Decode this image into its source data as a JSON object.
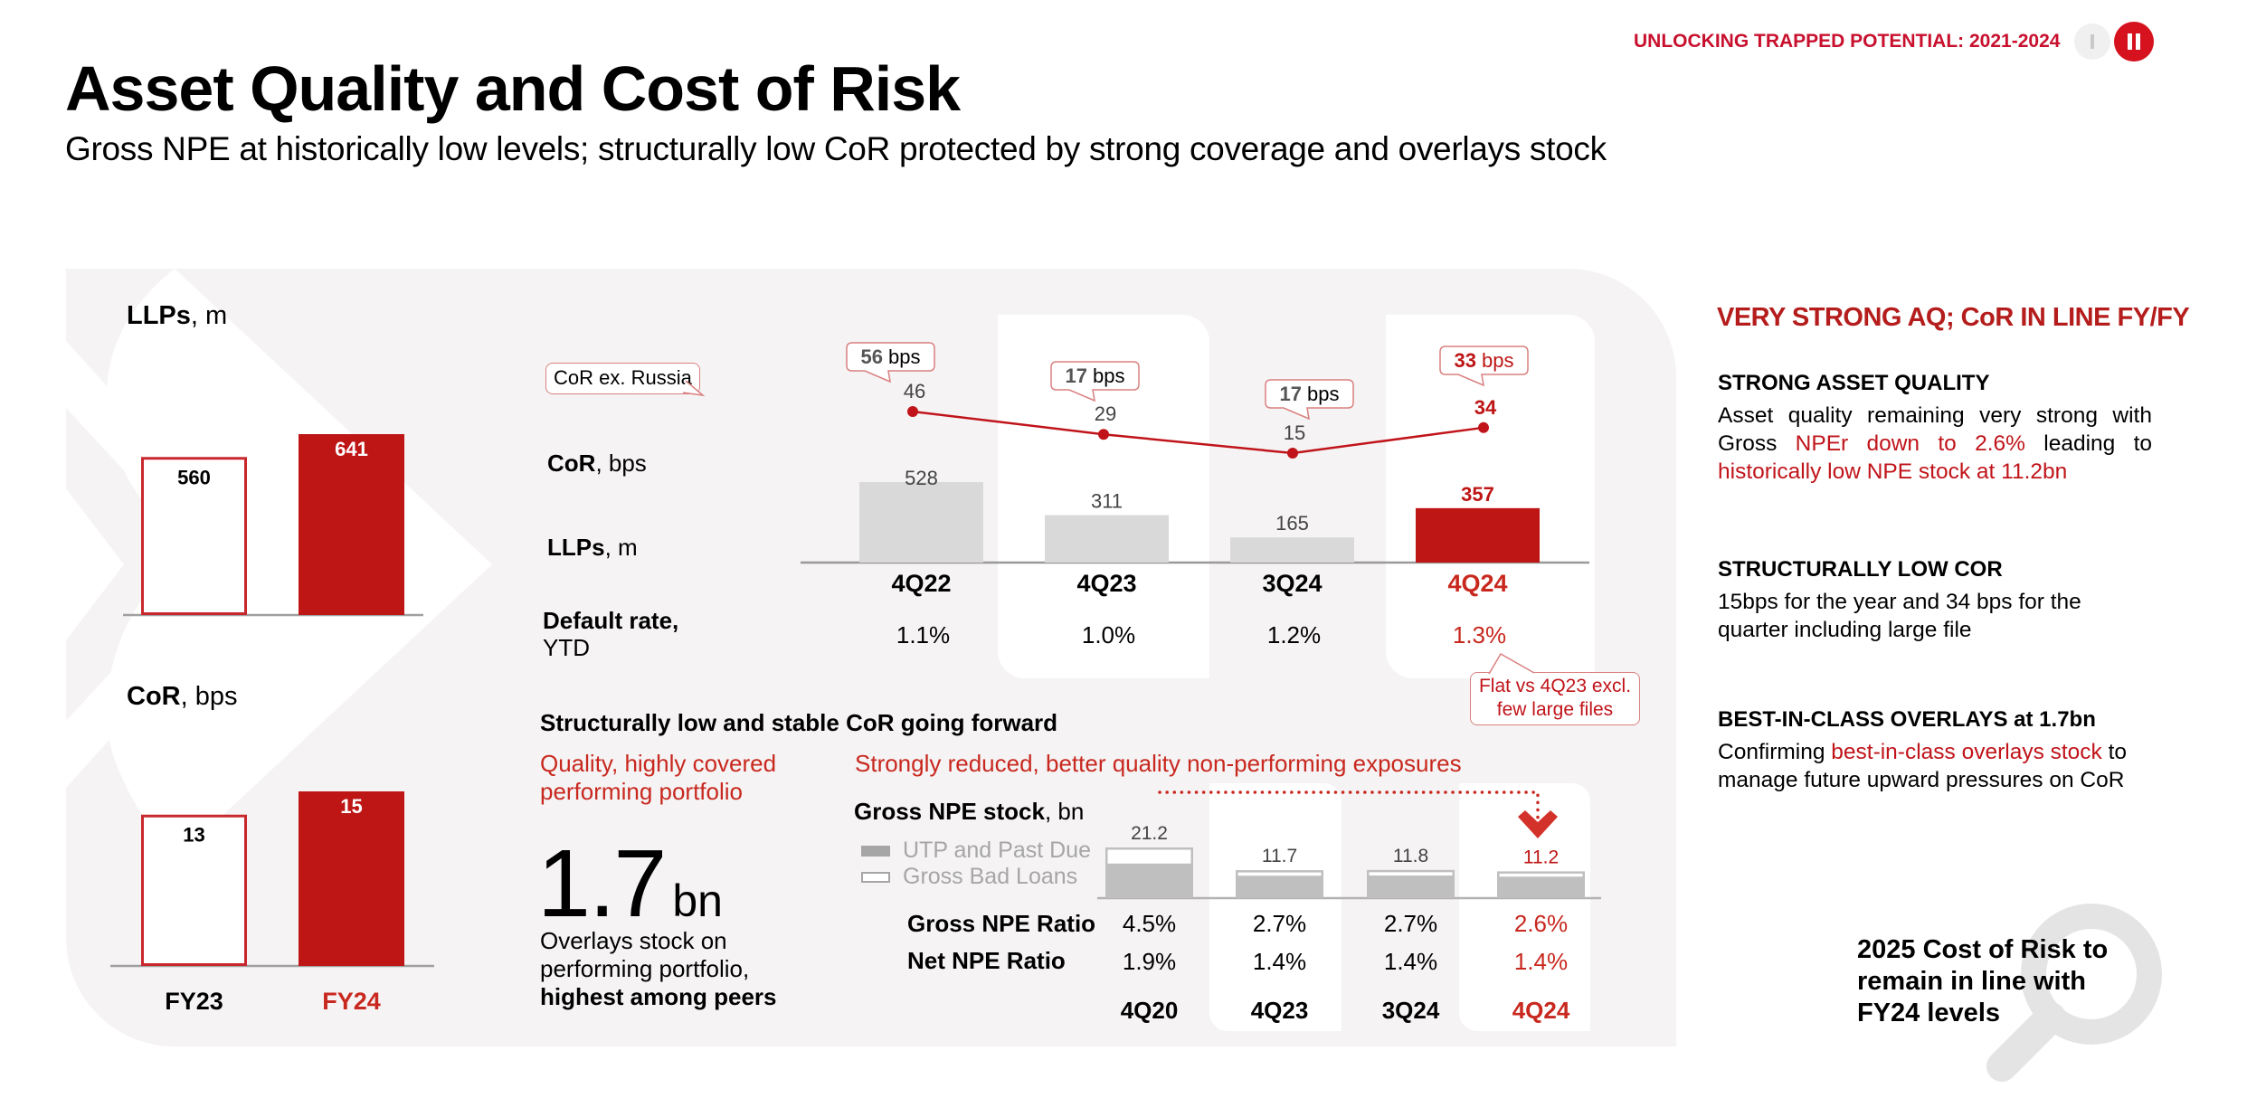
{
  "header": {
    "title": "Asset Quality and Cost of Risk",
    "subtitle": "Gross NPE at historically low levels; structurally low CoR protected by strong coverage and overlays stock",
    "section_tag": "UNLOCKING TRAPPED POTENTIAL: 2021-2024",
    "nav": [
      {
        "icon": "bar-icon",
        "label": "I",
        "active": false
      },
      {
        "icon": "pause-icon",
        "label": "II",
        "active": true
      }
    ]
  },
  "colors": {
    "brand_red": "#c0141a",
    "panel_bg": "#f5f3f4",
    "bar_gray": "#d9d9d9",
    "npe_gray": "#bfbfbf"
  },
  "left": {
    "llp_title_bold": "LLPs",
    "llp_title_unit": ", m",
    "cor_title_bold": "CoR",
    "cor_title_unit": ", bps"
  },
  "middle": {
    "callout_cor_ex_russia": "CoR ex. Russia",
    "row_cor_bold": "CoR",
    "row_cor_unit": ", bps",
    "row_llps_bold": "LLPs",
    "row_llps_unit": ", m",
    "row_default_bold": "Default rate,",
    "row_default_unit": "YTD",
    "flat_note_line1": "Flat vs 4Q23 excl.",
    "flat_note_line2": "few large files",
    "bps_unit": "bps"
  },
  "bottom": {
    "heading": "Structurally low and stable CoR going forward",
    "left_sub_line1": "Quality, highly covered",
    "left_sub_line2": "performing portfolio",
    "big_number": "1.7",
    "big_unit": "bn",
    "overlays_line1": "Overlays stock on",
    "overlays_line2": "performing portfolio,",
    "overlays_line3": "highest among peers",
    "right_sub": "Strongly reduced, better quality non-performing exposures",
    "npe_title_bold": "Gross NPE stock",
    "npe_title_unit": ", bn",
    "legend_utp": "UTP and Past Due",
    "legend_bad": "Gross Bad Loans",
    "ratio_gross_label": "Gross NPE Ratio",
    "ratio_net_label": "Net NPE Ratio"
  },
  "right": {
    "headline": "VERY STRONG AQ; CoR IN LINE FY/FY",
    "sections": [
      {
        "title": "STRONG ASSET QUALITY",
        "text_parts": [
          {
            "t": "Asset quality remaining very strong with Gross ",
            "hl": false
          },
          {
            "t": "NPEr down to 2.6%",
            "hl": true
          },
          {
            "t": " leading to ",
            "hl": false
          },
          {
            "t": "historically low NPE stock at 11.2bn",
            "hl": true
          }
        ]
      },
      {
        "title": "STRUCTURALLY LOW COR",
        "text_parts": [
          {
            "t": "15bps for the year and 34 bps for the quarter including large file",
            "hl": false
          }
        ]
      },
      {
        "title": "BEST-IN-CLASS OVERLAYS at 1.7bn",
        "text_parts": [
          {
            "t": "Confirming ",
            "hl": false
          },
          {
            "t": "best-in-class overlays stock",
            "hl": true
          },
          {
            "t": " to manage future upward pressures on CoR",
            "hl": false
          }
        ]
      }
    ],
    "outlook_line1": "2025 Cost of Risk to",
    "outlook_line2": "remain in line with",
    "outlook_line3": "FY24 levels"
  },
  "chart_data": [
    {
      "id": "llps_fy",
      "type": "bar",
      "title": "LLPs, m",
      "categories": [
        "FY23",
        "FY24"
      ],
      "values": [
        560,
        641
      ],
      "highlight": [
        false,
        true
      ],
      "ylim": [
        0,
        700
      ]
    },
    {
      "id": "cor_fy",
      "type": "bar",
      "title": "CoR, bps",
      "categories": [
        "FY23",
        "FY24"
      ],
      "values": [
        13,
        15
      ],
      "highlight": [
        false,
        true
      ],
      "ylim": [
        0,
        16.5
      ]
    },
    {
      "id": "quarterly_cor_llps",
      "type": "bar",
      "categories": [
        "4Q22",
        "4Q23",
        "3Q24",
        "4Q24"
      ],
      "series": [
        {
          "name": "LLPs, m",
          "type": "bar",
          "values": [
            528,
            311,
            165,
            357
          ]
        },
        {
          "name": "CoR, bps",
          "type": "line",
          "values": [
            46,
            29,
            15,
            34
          ]
        },
        {
          "name": "CoR ex. Russia, bps",
          "type": "callout",
          "values": [
            56,
            17,
            17,
            33
          ]
        },
        {
          "name": "Default rate, YTD",
          "type": "table",
          "values": [
            "1.1%",
            "1.0%",
            "1.2%",
            "1.3%"
          ]
        }
      ],
      "highlight_category": "4Q24",
      "annotation": "Flat vs 4Q23 excl. few large files",
      "llps_ylim": [
        0,
        560
      ],
      "cor_ylim": [
        0,
        70
      ]
    },
    {
      "id": "gross_npe_stock",
      "type": "bar",
      "title": "Gross NPE stock, bn",
      "categories": [
        "4Q20",
        "4Q23",
        "3Q24",
        "4Q24"
      ],
      "totals": [
        21.2,
        11.7,
        11.8,
        11.2
      ],
      "series": [
        {
          "name": "UTP and Past Due",
          "values": [
            14.0,
            8.9,
            9.0,
            8.5
          ]
        },
        {
          "name": "Gross Bad Loans",
          "values": [
            7.2,
            2.8,
            2.8,
            2.7
          ]
        }
      ],
      "gross_npe_ratio": [
        "4.5%",
        "2.7%",
        "2.7%",
        "2.6%"
      ],
      "net_npe_ratio": [
        "1.9%",
        "1.4%",
        "1.4%",
        "1.4%"
      ],
      "highlight_category": "4Q24",
      "ylim": [
        0,
        22
      ]
    }
  ]
}
